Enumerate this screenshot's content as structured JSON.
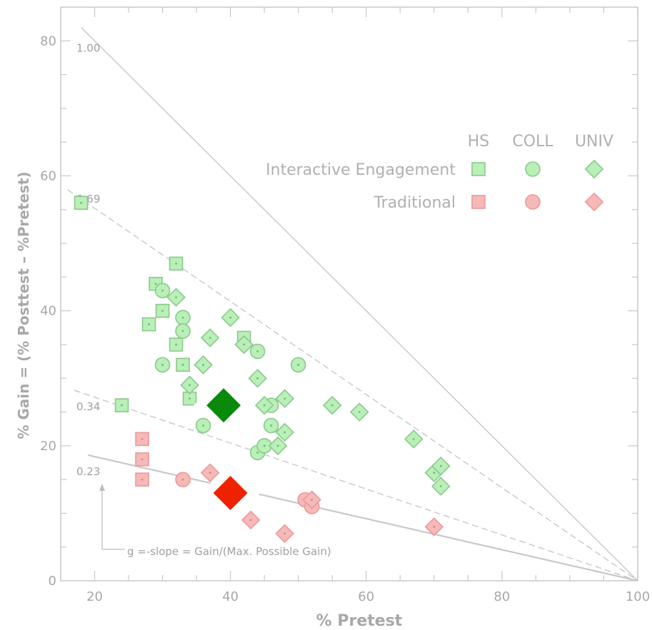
{
  "chart_data": {
    "type": "scatter",
    "xlabel": "% Pretest",
    "ylabel": "% Gain = (% Posttest – %Pretest)",
    "xlim": [
      15,
      100
    ],
    "ylim": [
      0,
      85
    ],
    "x_ticks": [
      20,
      40,
      60,
      80,
      100
    ],
    "y_ticks": [
      0,
      20,
      40,
      60,
      80
    ],
    "grid": false,
    "gain_lines": [
      {
        "g": 1.0,
        "label": "1.00",
        "from_x": 18,
        "style": "solid"
      },
      {
        "g": 0.69,
        "label": "0.69",
        "from_x": 16,
        "style": "dashed"
      },
      {
        "g": 0.34,
        "label": "0.34",
        "from_x": 17,
        "style": "dashed"
      },
      {
        "g": 0.23,
        "label": "0.23",
        "from_x": 19,
        "style": "solid"
      }
    ],
    "annotation": "g  =-slope  = Gain/(Max. Possible Gain)",
    "legend": {
      "placement": "top-right",
      "columns": [
        "HS",
        "COLL",
        "UNIV"
      ],
      "rows": [
        "Interactive Engagement",
        "Traditional"
      ]
    },
    "colors": {
      "ie_fill": "#b8f0b8",
      "ie_stroke": "#8cc88c",
      "trad_fill": "#f7b8b8",
      "trad_stroke": "#e89a9a",
      "highlight_ie": "#0a8a0a",
      "highlight_trad": "#ee2200",
      "axis": "#c8c8c8",
      "lines": "#c8c8c8"
    },
    "series": [
      {
        "group": "Interactive Engagement",
        "level": "HS",
        "points": [
          [
            18,
            56
          ],
          [
            24,
            26
          ],
          [
            28,
            38
          ],
          [
            29,
            44
          ],
          [
            30,
            40
          ],
          [
            32,
            35
          ],
          [
            32,
            47
          ],
          [
            33,
            32
          ],
          [
            42,
            36
          ],
          [
            34,
            27
          ]
        ]
      },
      {
        "group": "Interactive Engagement",
        "level": "COLL",
        "points": [
          [
            30,
            43
          ],
          [
            30,
            32
          ],
          [
            33,
            39
          ],
          [
            33,
            37
          ],
          [
            44,
            34
          ],
          [
            44,
            19
          ],
          [
            45,
            20
          ],
          [
            46,
            26
          ],
          [
            46,
            23
          ],
          [
            50,
            32
          ],
          [
            36,
            23
          ]
        ]
      },
      {
        "group": "Interactive Engagement",
        "level": "UNIV",
        "points": [
          [
            32,
            42
          ],
          [
            34,
            29
          ],
          [
            36,
            32
          ],
          [
            37,
            36
          ],
          [
            40,
            39
          ],
          [
            42,
            35
          ],
          [
            44,
            30
          ],
          [
            45,
            26
          ],
          [
            47,
            20
          ],
          [
            48,
            27
          ],
          [
            48,
            22
          ],
          [
            55,
            26
          ],
          [
            59,
            25
          ],
          [
            67,
            21
          ],
          [
            70,
            16
          ],
          [
            71,
            17
          ],
          [
            71,
            14
          ]
        ]
      },
      {
        "group": "Traditional",
        "level": "HS",
        "points": [
          [
            27,
            21
          ],
          [
            27,
            18
          ],
          [
            27,
            15
          ]
        ]
      },
      {
        "group": "Traditional",
        "level": "COLL",
        "points": [
          [
            33,
            15
          ],
          [
            51,
            12
          ],
          [
            52,
            11
          ]
        ]
      },
      {
        "group": "Traditional",
        "level": "UNIV",
        "points": [
          [
            37,
            16
          ],
          [
            43,
            9
          ],
          [
            48,
            7
          ],
          [
            52,
            12
          ],
          [
            70,
            8
          ]
        ]
      }
    ],
    "highlights": [
      {
        "group": "Interactive Engagement",
        "level": "UNIV",
        "x": 39,
        "y": 26
      },
      {
        "group": "Traditional",
        "level": "UNIV",
        "x": 40,
        "y": 13
      }
    ]
  }
}
